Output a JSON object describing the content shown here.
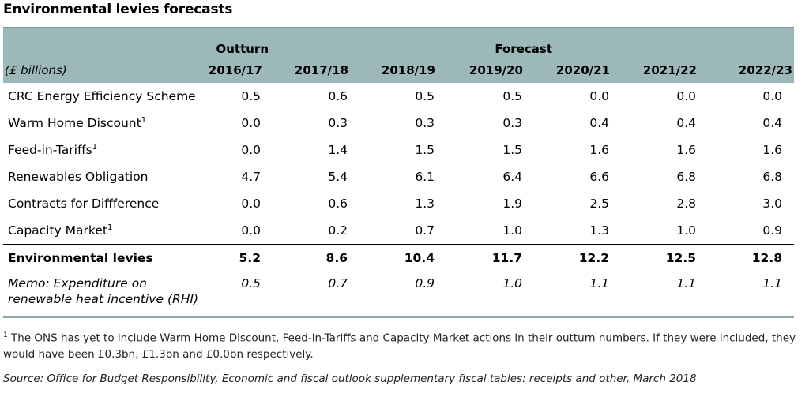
{
  "chart_data": {
    "type": "table",
    "title": "Environmental levies forecasts",
    "units_label": "(£ billions)",
    "group_headers": {
      "outturn": "Outturn",
      "forecast": "Forecast"
    },
    "columns": [
      "2016/17",
      "2017/18",
      "2018/19",
      "2019/20",
      "2020/21",
      "2021/22",
      "2022/23"
    ],
    "rows": [
      {
        "label": "CRC Energy Efficiency Scheme",
        "sup": "",
        "values": [
          "0.5",
          "0.6",
          "0.5",
          "0.5",
          "0.0",
          "0.0",
          "0.0"
        ]
      },
      {
        "label": "Warm Home Discount",
        "sup": "1",
        "values": [
          "0.0",
          "0.3",
          "0.3",
          "0.3",
          "0.4",
          "0.4",
          "0.4"
        ]
      },
      {
        "label": "Feed-in-Tariffs",
        "sup": "1",
        "values": [
          "0.0",
          "1.4",
          "1.5",
          "1.5",
          "1.6",
          "1.6",
          "1.6"
        ]
      },
      {
        "label": "Renewables Obligation",
        "sup": "",
        "values": [
          "4.7",
          "5.4",
          "6.1",
          "6.4",
          "6.6",
          "6.8",
          "6.8"
        ]
      },
      {
        "label": "Contracts for Diffference",
        "sup": "",
        "values": [
          "0.0",
          "0.6",
          "1.3",
          "1.9",
          "2.5",
          "2.8",
          "3.0"
        ]
      },
      {
        "label": "Capacity Market",
        "sup": "1",
        "values": [
          "0.0",
          "0.2",
          "0.7",
          "1.0",
          "1.3",
          "1.0",
          "0.9"
        ]
      }
    ],
    "total": {
      "label": "Environmental levies",
      "values": [
        "5.2",
        "8.6",
        "10.4",
        "11.7",
        "12.2",
        "12.5",
        "12.8"
      ]
    },
    "memo": {
      "label_line1": "Memo: Expenditure on",
      "label_line2": "renewable heat incentive (RHI)",
      "values": [
        "0.5",
        "0.7",
        "0.9",
        "1.0",
        "1.1",
        "1.1",
        "1.1"
      ]
    }
  },
  "footnote": {
    "marker": "1",
    "text": " The ONS has yet to include Warm Home Discount, Feed-in-Tariffs and Capacity Market actions in their outturn numbers. If they were included, they would have been £0.3bn, £1.3bn and £0.0bn respectively."
  },
  "source": "Source: Office for Budget Responsibility, Economic and fiscal outlook supplementary fiscal tables: receipts and other, March 2018",
  "colors": {
    "header_bg": "#9cb8b9",
    "rule": "#000000"
  }
}
